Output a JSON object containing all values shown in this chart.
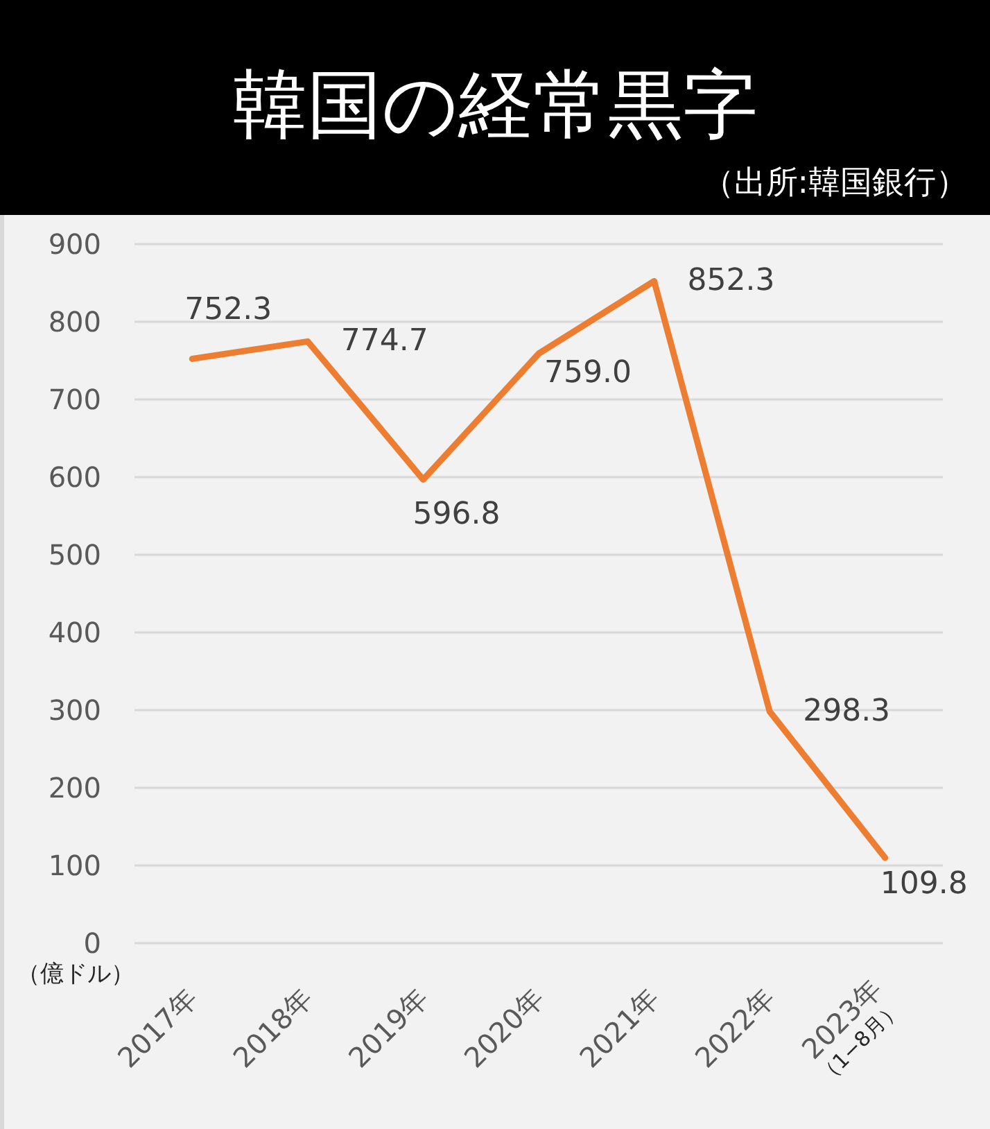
{
  "chart_data": {
    "type": "line",
    "title": "韓国の経常黒字",
    "ylabel": "（億ドル）",
    "annotations": [
      "（出所:韓国銀行）"
    ],
    "categories": [
      "2017年",
      "2018年",
      "2019年",
      "2020年",
      "2021年",
      "2022年",
      "2023年\n（1−8月）"
    ],
    "values": [
      752.3,
      774.7,
      596.8,
      759.0,
      852.3,
      298.3,
      109.8
    ],
    "color": "#ed7d31",
    "value_labels": [
      "752.3",
      "774.7",
      "596.8",
      "759.0",
      "852.3",
      "298.3",
      "109.8"
    ],
    "ylim": [
      0,
      900
    ],
    "yticks": [
      0,
      100,
      200,
      300,
      400,
      500,
      600,
      700,
      800,
      900
    ],
    "grid": "y",
    "marker": "none",
    "line_style": "solid"
  }
}
